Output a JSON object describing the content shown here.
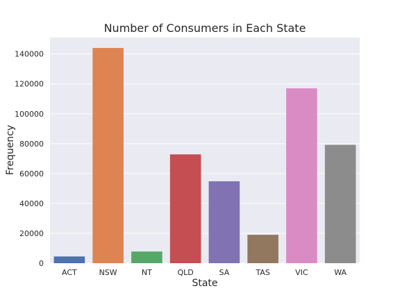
{
  "chart_data": {
    "type": "bar",
    "title": "Number of Consumers in Each State",
    "xlabel": "State",
    "ylabel": "Frequency",
    "categories": [
      "ACT",
      "NSW",
      "NT",
      "QLD",
      "SA",
      "TAS",
      "VIC",
      "WA"
    ],
    "values": [
      4500,
      144000,
      7800,
      72800,
      54800,
      19000,
      117000,
      79200
    ],
    "colors": [
      "#4c72b0",
      "#dd8452",
      "#55a868",
      "#c44e52",
      "#8172b3",
      "#937860",
      "#da8bc3",
      "#8c8c8c"
    ],
    "ylim": [
      0,
      151000
    ],
    "yticks": [
      0,
      20000,
      40000,
      60000,
      80000,
      100000,
      120000,
      140000
    ],
    "grid": true,
    "background": "#eaeaf2"
  }
}
